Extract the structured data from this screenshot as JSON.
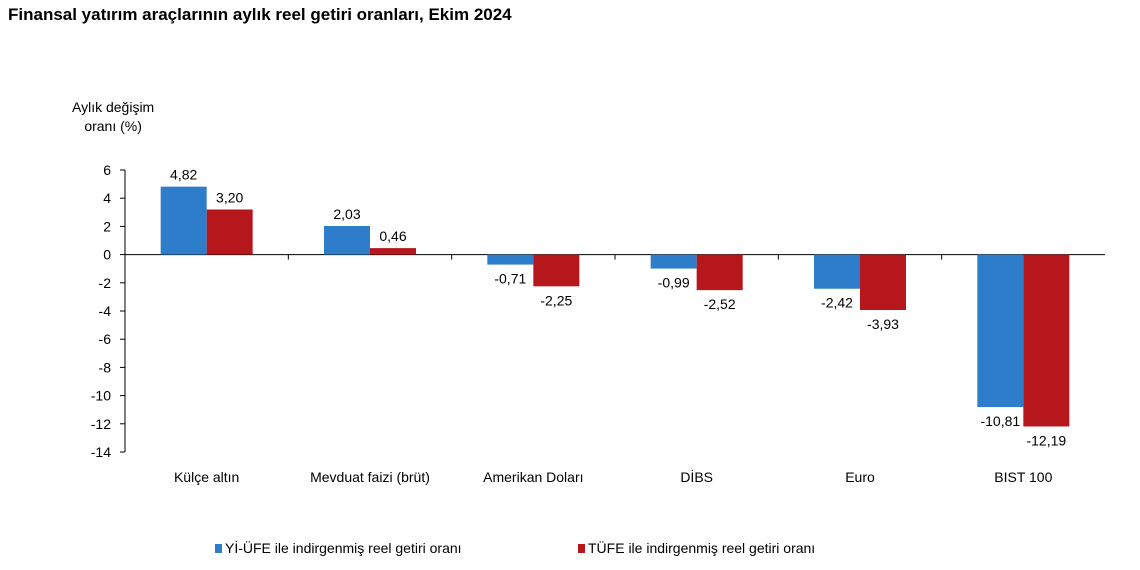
{
  "chart_data": {
    "type": "bar",
    "title": "Finansal yatırım araçlarının aylık reel getiri oranları, Ekim 2024",
    "ylabel": "Aylık değişim oranı (%)",
    "ylabel_lines": [
      "Aylık değişim",
      "oranı (%)"
    ],
    "xlabel": "",
    "ylim": [
      -14,
      6
    ],
    "yticks": [
      6,
      4,
      2,
      0,
      -2,
      -4,
      -6,
      -8,
      -10,
      -12,
      -14
    ],
    "grid": false,
    "legend_position": "bottom",
    "categories": [
      "Külçe altın",
      "Mevduat faizi (brüt)",
      "Amerikan Doları",
      "DİBS",
      "Euro",
      "BIST 100"
    ],
    "series": [
      {
        "name": "Yİ-ÜFE ile indirgenmiş reel getiri oranı",
        "color": "#2e7dcb",
        "values": [
          4.82,
          2.03,
          -0.71,
          -0.99,
          -2.42,
          -10.81
        ],
        "labels": [
          "4,82",
          "2,03",
          "-0,71",
          "-0,99",
          "-2,42",
          "-10,81"
        ]
      },
      {
        "name": "TÜFE ile indirgenmiş reel getiri oranı",
        "color": "#b5171c",
        "values": [
          3.2,
          0.46,
          -2.25,
          -2.52,
          -3.93,
          -12.19
        ],
        "labels": [
          "3,20",
          "0,46",
          "-2,25",
          "-2,52",
          "-3,93",
          "-12,19"
        ]
      }
    ]
  }
}
